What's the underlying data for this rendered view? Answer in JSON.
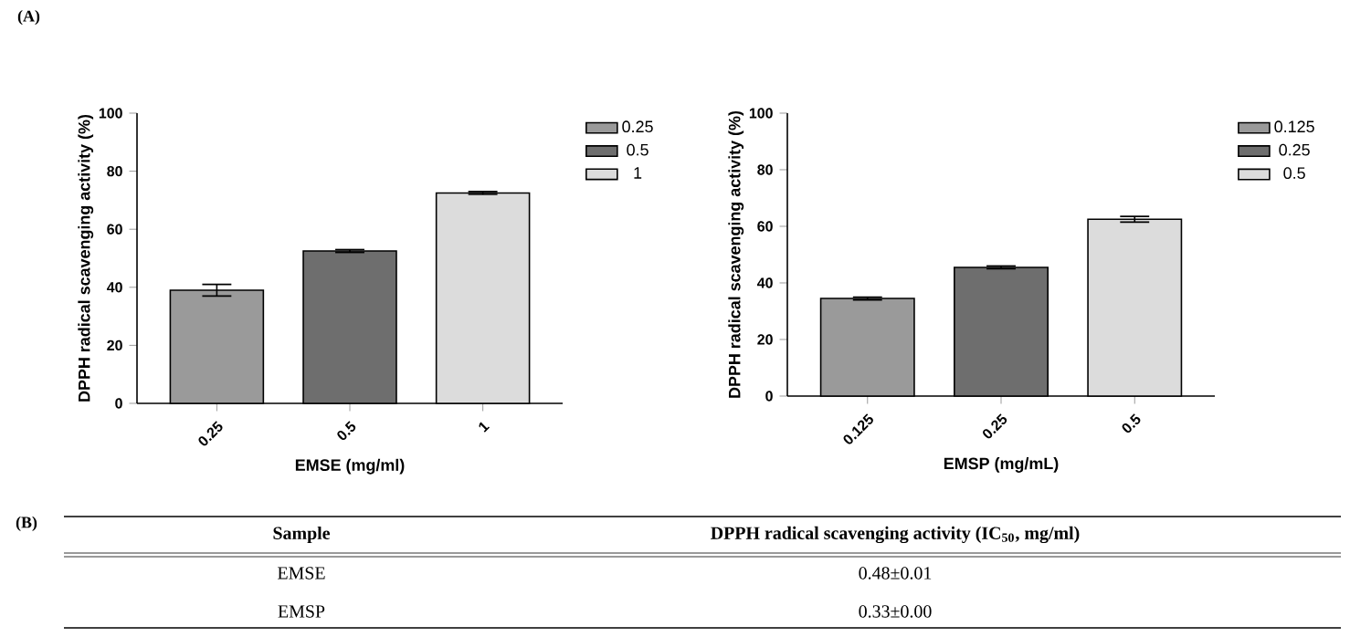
{
  "chart_data": [
    {
      "type": "bar",
      "title": "(A)",
      "xlabel": "EMSE (mg/ml)",
      "ylabel": "DPPH radical scavenging activity (%)",
      "categories": [
        "0.25",
        "0.5",
        "1"
      ],
      "series": [
        {
          "name": "0.25",
          "color": "#9a9a9a",
          "values": [
            39,
            null,
            null
          ],
          "errors": [
            2,
            null,
            null
          ]
        },
        {
          "name": "0.5",
          "color": "#6e6e6e",
          "values": [
            null,
            52.5,
            null
          ],
          "errors": [
            null,
            0.5,
            null
          ]
        },
        {
          "name": "1",
          "color": "#dcdcdc",
          "values": [
            null,
            null,
            72.5
          ],
          "errors": [
            null,
            null,
            0.5
          ]
        }
      ],
      "ylim": [
        0,
        100
      ],
      "yticks": [
        0,
        20,
        40,
        60,
        80,
        100
      ],
      "legend": "top right"
    },
    {
      "type": "bar",
      "xlabel": "EMSP (mg/mL)",
      "ylabel": "DPPH radical scavenging activity (%)",
      "categories": [
        "0.125",
        "0.25",
        "0.5"
      ],
      "series": [
        {
          "name": "0.125",
          "color": "#9a9a9a",
          "values": [
            34.5,
            null,
            null
          ],
          "errors": [
            0.5,
            null,
            null
          ]
        },
        {
          "name": "0.25",
          "color": "#6e6e6e",
          "values": [
            null,
            45.5,
            null
          ],
          "errors": [
            null,
            0.5,
            null
          ]
        },
        {
          "name": "0.5",
          "color": "#dcdcdc",
          "values": [
            null,
            null,
            62.5
          ],
          "errors": [
            null,
            null,
            1
          ]
        }
      ],
      "ylim": [
        0,
        100
      ],
      "yticks": [
        0,
        20,
        40,
        60,
        80,
        100
      ],
      "legend": "top right"
    },
    {
      "type": "other",
      "title": "(B)",
      "annotations": [
        "Sample",
        "DPPH  radical  scavenging  activity  (IC$_{50}$,  mg/ml)",
        "EMSE",
        "0.48±0.01",
        "EMSP",
        "0.33±0.00"
      ]
    }
  ]
}
